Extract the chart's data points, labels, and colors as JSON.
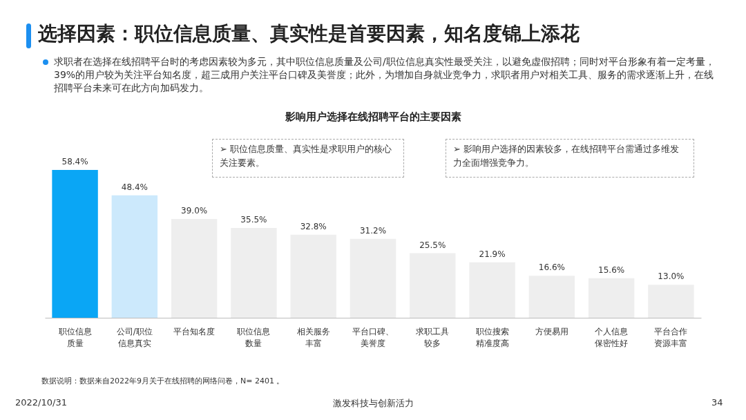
{
  "chart_data": {
    "type": "bar",
    "title": "选择因素：职位信息质量、真实性是首要因素，知名度锦上添花",
    "subtitle": "求职者在选择在线招聘平台时的考虑因素较为多元，其中职位信息质量及公司/职位信息真实性最受关注，以避免虚假招聘；同时对平台形象有着一定考量，39%的用户较为关注平台知名度，超三成用户关注平台口碑及美誉度；此外，为增加自身就业竞争力，求职者用户对相关工具、服务的需求逐渐上升，在线招聘平台未来可在此方向加码发力。",
    "categories": [
      "职位信息质量",
      "公司/职位信息真实",
      "平台知名度",
      "职位信息数量",
      "相关服务丰富",
      "平台口碑、美誉度",
      "求职工具较多",
      "职位搜索精准度高",
      "方便易用",
      "个人信息保密性好",
      "平台合作资源丰富"
    ],
    "values": [
      58.4,
      48.4,
      39.0,
      35.5,
      32.8,
      31.2,
      25.5,
      21.9,
      16.6,
      15.6,
      13.0
    ],
    "value_labels": [
      "58.4%",
      "48.4%",
      "39.0%",
      "35.5%",
      "32.8%",
      "31.2%",
      "25.5%",
      "21.9%",
      "16.6%",
      "15.6%",
      "13.0%"
    ],
    "colors": [
      "#0aa6f5",
      "#cce9fc",
      "#eeeeee",
      "#eeeeee",
      "#eeeeee",
      "#eeeeee",
      "#eeeeee",
      "#eeeeee",
      "#eeeeee",
      "#eeeeee",
      "#eeeeee"
    ],
    "annotations": [
      "影响用户选择在线招聘平台的主要因素",
      "➢  职位信息质量、真实性是求职用户的核心关注要素。",
      "➢  影响用户选择的因素较多，在线招聘平台需通过多维发力全面增强竞争力。",
      "数据说明：数据来自2022年9月关于在线招聘的网络问卷，N=  2401 。",
      "2022/10/31",
      "激发科技与创新活力",
      "34"
    ]
  }
}
